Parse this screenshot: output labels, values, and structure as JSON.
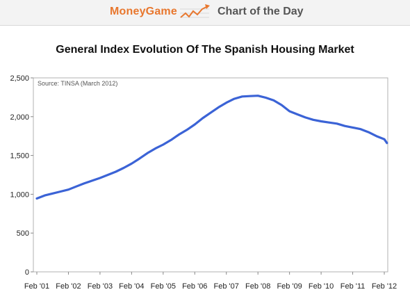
{
  "banner": {
    "brand": "MoneyGame",
    "section": "Chart of the Day",
    "logo_icon": "trend-up-chart-icon"
  },
  "chart_data": {
    "type": "line",
    "title": "General Index Evolution Of The Spanish Housing Market",
    "source": "Source: TINSA (March 2012)",
    "xlabel": "",
    "ylabel": "",
    "ylim": [
      0,
      2500
    ],
    "y_ticks": [
      "0",
      "500",
      "1,000",
      "1,500",
      "2,000",
      "2,500"
    ],
    "x_ticks": [
      "Feb '01",
      "Feb '02",
      "Feb '03",
      "Feb '04",
      "Feb '05",
      "Feb '06",
      "Feb '07",
      "Feb '08",
      "Feb '09",
      "Feb '10",
      "Feb '11",
      "Feb '12"
    ],
    "grid": false,
    "line_color": "#3b63d6",
    "series": [
      {
        "x": [
          "Feb '01",
          "May '01",
          "Aug '01",
          "Nov '01",
          "Feb '02",
          "May '02",
          "Aug '02",
          "Nov '02",
          "Feb '03",
          "May '03",
          "Aug '03",
          "Nov '03",
          "Feb '04",
          "May '04",
          "Aug '04",
          "Nov '04",
          "Feb '05",
          "May '05",
          "Aug '05",
          "Nov '05",
          "Feb '06",
          "May '06",
          "Aug '06",
          "Nov '06",
          "Feb '07",
          "May '07",
          "Aug '07",
          "Nov '07",
          "Feb '08",
          "May '08",
          "Aug '08",
          "Nov '08",
          "Feb '09",
          "May '09",
          "Aug '09",
          "Nov '09",
          "Feb '10",
          "May '10",
          "Aug '10",
          "Nov '10",
          "Feb '11",
          "May '11",
          "Aug '11",
          "Nov '11",
          "Feb '12",
          "Mar '12"
        ],
        "values": [
          945,
          985,
          1010,
          1035,
          1060,
          1100,
          1140,
          1175,
          1210,
          1250,
          1290,
          1340,
          1395,
          1460,
          1530,
          1590,
          1640,
          1700,
          1770,
          1830,
          1900,
          1980,
          2050,
          2120,
          2180,
          2230,
          2260,
          2265,
          2270,
          2245,
          2210,
          2150,
          2070,
          2030,
          1990,
          1960,
          1940,
          1925,
          1910,
          1880,
          1860,
          1840,
          1800,
          1750,
          1710,
          1660
        ]
      }
    ]
  }
}
